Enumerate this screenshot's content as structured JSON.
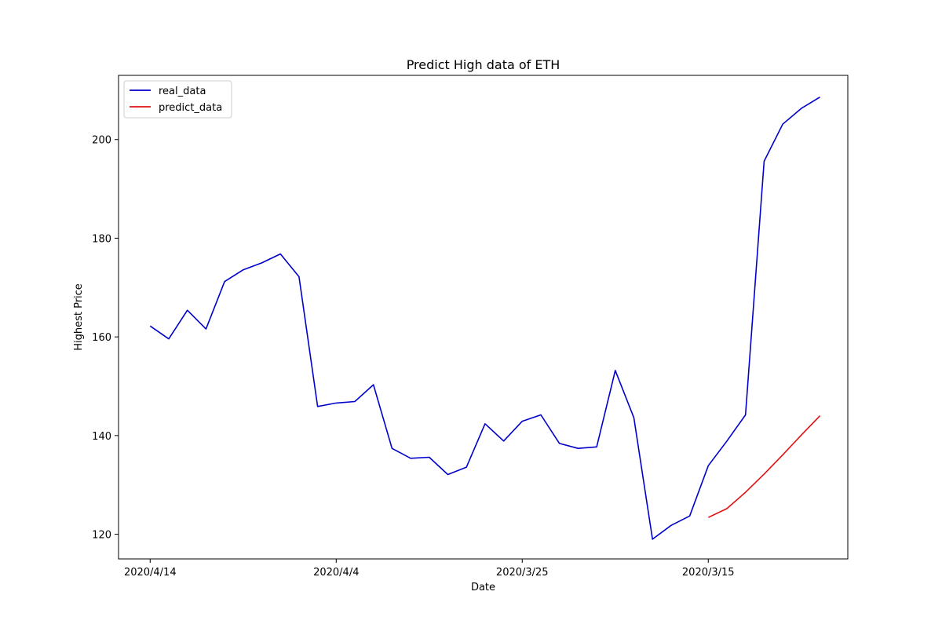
{
  "chart_data": {
    "type": "line",
    "title": "Predict High data of ETH",
    "xlabel": "Date",
    "ylabel": "Highest Price",
    "x_tick_labels": [
      {
        "index": 0,
        "label": "2020/4/14"
      },
      {
        "index": 10,
        "label": "2020/4/4"
      },
      {
        "index": 20,
        "label": "2020/3/25"
      },
      {
        "index": 30,
        "label": "2020/3/15"
      }
    ],
    "y_ticks": [
      120,
      140,
      160,
      180,
      200
    ],
    "ylim": [
      115,
      213
    ],
    "xlim": [
      -1.7,
      37.5
    ],
    "grid": false,
    "legend_position": "upper-left",
    "series": [
      {
        "name": "real_data",
        "color": "#0000cc",
        "x": [
          0,
          1,
          2,
          3,
          4,
          5,
          6,
          7,
          8,
          9,
          10,
          11,
          12,
          13,
          14,
          15,
          16,
          17,
          18,
          19,
          20,
          21,
          22,
          23,
          24,
          25,
          26,
          27,
          28,
          29,
          30,
          31,
          32,
          33,
          34,
          35,
          36
        ],
        "values": [
          162.2,
          159.6,
          165.4,
          161.6,
          171.2,
          173.6,
          175.0,
          176.8,
          172.2,
          145.9,
          146.6,
          146.9,
          150.3,
          137.4,
          135.4,
          135.6,
          132.1,
          133.6,
          142.4,
          138.9,
          142.9,
          144.2,
          138.4,
          137.4,
          137.7,
          153.2,
          143.6,
          119.0,
          121.8,
          123.7,
          133.9,
          138.9,
          144.2,
          195.6,
          203.1,
          206.3,
          208.6
        ]
      },
      {
        "name": "predict_data",
        "color": "#e01010",
        "x": [
          30,
          31,
          32,
          33,
          34,
          35,
          36
        ],
        "values": [
          123.4,
          125.2,
          128.5,
          132.2,
          136.1,
          140.1,
          144.0
        ]
      }
    ]
  }
}
